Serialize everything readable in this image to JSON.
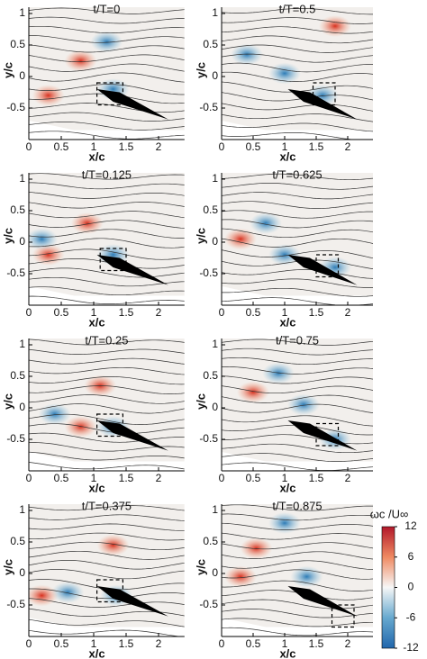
{
  "axes": {
    "xlabel": "x/c",
    "ylabel": "y/c",
    "xticks": [
      0,
      0.5,
      1,
      1.5,
      2
    ],
    "yticks": [
      1,
      0.5,
      0,
      -0.5
    ],
    "xlim": [
      0,
      2.4
    ],
    "ylim": [
      -1,
      1.1
    ]
  },
  "panels": [
    {
      "title": "t/T=0"
    },
    {
      "title": "t/T=0.125"
    },
    {
      "title": "t/T=0.25"
    },
    {
      "title": "t/T=0.375"
    },
    {
      "title": "t/T=0.5"
    },
    {
      "title": "t/T=0.625"
    },
    {
      "title": "t/T=0.75"
    },
    {
      "title": "t/T=0.875"
    }
  ],
  "colorbar": {
    "label": "ωc /U∞",
    "ticks": [
      12,
      6,
      0,
      -6,
      -12
    ],
    "lim": [
      -12,
      12
    ]
  }
}
